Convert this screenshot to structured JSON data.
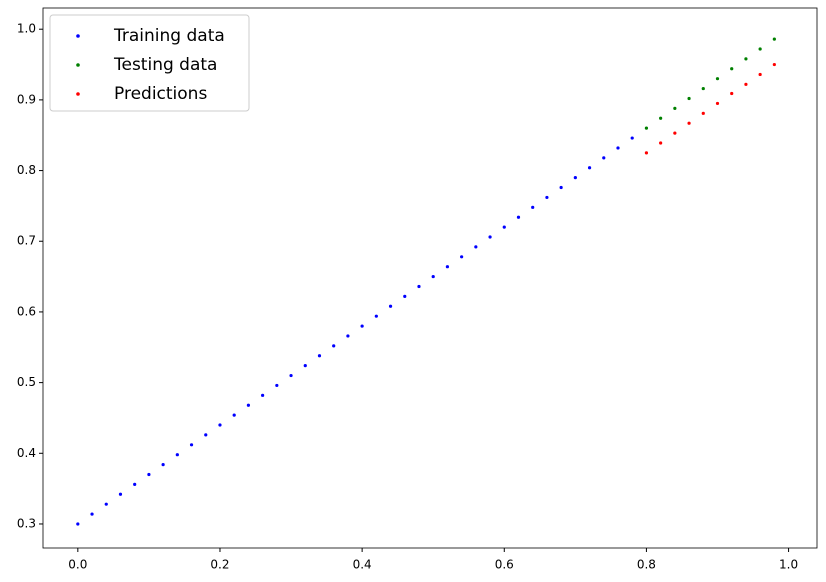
{
  "chart_data": {
    "type": "scatter",
    "legend": "upper left",
    "xlim": [
      -0.049,
      1.04
    ],
    "ylim": [
      0.266,
      1.03
    ],
    "xticks": [
      {
        "value": 0,
        "label": "0.0"
      },
      0.2,
      0.4,
      0.6,
      0.8,
      {
        "value": 1,
        "label": "1.0"
      }
    ],
    "yticks": [
      0.3,
      0.4,
      0.5,
      0.6,
      0.7,
      0.8,
      0.9,
      {
        "value": 1,
        "label": "1.0"
      }
    ],
    "series": [
      {
        "name": "Training data",
        "color": "#0000ff",
        "x": [
          0,
          0.02,
          0.04,
          0.06,
          0.08,
          0.1,
          0.12,
          0.14,
          0.16,
          0.18,
          0.2,
          0.22,
          0.24,
          0.26,
          0.28,
          0.3,
          0.32,
          0.34,
          0.36,
          0.38,
          0.4,
          0.42,
          0.44,
          0.46,
          0.48,
          0.5,
          0.52,
          0.54,
          0.56,
          0.58,
          0.6,
          0.62,
          0.64,
          0.66,
          0.68,
          0.7,
          0.72,
          0.74,
          0.76,
          0.78
        ],
        "values": [
          0.3,
          0.314,
          0.328,
          0.342,
          0.356,
          0.37,
          0.384,
          0.398,
          0.412,
          0.426,
          0.44,
          0.454,
          0.468,
          0.482,
          0.496,
          0.51,
          0.524,
          0.538,
          0.552,
          0.566,
          0.58,
          0.594,
          0.608,
          0.622,
          0.636,
          0.65,
          0.664,
          0.678,
          0.692,
          0.706,
          0.72,
          0.734,
          0.748,
          0.762,
          0.776,
          0.79,
          0.804,
          0.818,
          0.832,
          0.846
        ]
      },
      {
        "name": "Testing data",
        "color": "#008000",
        "x": [
          0.8,
          0.82,
          0.84,
          0.86,
          0.88,
          0.9,
          0.92,
          0.94,
          0.96,
          0.98
        ],
        "values": [
          0.86,
          0.874,
          0.888,
          0.902,
          0.916,
          0.93,
          0.944,
          0.958,
          0.972,
          0.986
        ]
      },
      {
        "name": "Predictions",
        "color": "#ff0000",
        "x": [
          0.8,
          0.82,
          0.84,
          0.86,
          0.88,
          0.9,
          0.92,
          0.94,
          0.96,
          0.98
        ],
        "values": [
          0.825,
          0.839,
          0.853,
          0.867,
          0.881,
          0.895,
          0.909,
          0.922,
          0.936,
          0.95
        ]
      }
    ]
  }
}
